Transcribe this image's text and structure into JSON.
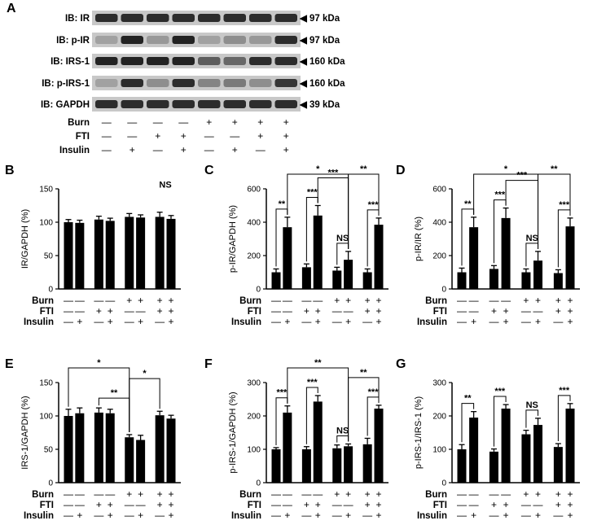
{
  "blot": {
    "panel": "A",
    "rows": [
      {
        "label": "IB: IR",
        "kda": "◀ 97 kDa",
        "intensity": [
          0.85,
          0.85,
          0.85,
          0.85,
          0.85,
          0.85,
          0.85,
          0.85
        ]
      },
      {
        "label": "IB: p-IR",
        "kda": "◀ 97 kDa",
        "intensity": [
          0.25,
          0.9,
          0.3,
          0.9,
          0.25,
          0.35,
          0.3,
          0.85
        ]
      },
      {
        "label": "IB: IRS-1",
        "kda": "◀ 160 kDa",
        "intensity": [
          0.9,
          0.9,
          0.9,
          0.9,
          0.6,
          0.55,
          0.85,
          0.85
        ]
      },
      {
        "label": "IB: p-IRS-1",
        "kda": "◀ 160 kDa",
        "intensity": [
          0.25,
          0.85,
          0.35,
          0.85,
          0.4,
          0.45,
          0.35,
          0.8
        ]
      },
      {
        "label": "IB: GAPDH",
        "kda": "◀ 39 kDa",
        "intensity": [
          0.85,
          0.85,
          0.85,
          0.85,
          0.85,
          0.85,
          0.85,
          0.85
        ]
      }
    ],
    "conditions": [
      {
        "label": "Burn",
        "signs": [
          "—",
          "—",
          "—",
          "—",
          "+",
          "+",
          "+",
          "+"
        ]
      },
      {
        "label": "FTI",
        "signs": [
          "—",
          "—",
          "+",
          "+",
          "—",
          "—",
          "+",
          "+"
        ]
      },
      {
        "label": "Insulin",
        "signs": [
          "—",
          "+",
          "—",
          "+",
          "—",
          "+",
          "—",
          "+"
        ]
      }
    ]
  },
  "chart_data": [
    {
      "panel": "B",
      "type": "bar",
      "ylabel": "IR/GAPDH (%)",
      "ylim": [
        0,
        150
      ],
      "yticks": [
        "0",
        "50",
        "100",
        "150"
      ],
      "values": [
        100,
        99,
        104,
        102,
        108,
        107,
        108,
        105
      ],
      "errors": [
        4,
        4,
        5,
        4,
        5,
        4,
        7,
        5
      ],
      "annotations": [
        {
          "text": "NS",
          "over": [
            6,
            7
          ]
        }
      ],
      "conditions": [
        {
          "label": "Burn",
          "signs": [
            "—",
            "—",
            "—",
            "—",
            "+",
            "+",
            "+",
            "+"
          ]
        },
        {
          "label": "FTI",
          "signs": [
            "—",
            "—",
            "+",
            "+",
            "—",
            "—",
            "+",
            "+"
          ]
        },
        {
          "label": "Insulin",
          "signs": [
            "—",
            "+",
            "—",
            "+",
            "—",
            "+",
            "—",
            "+"
          ]
        }
      ]
    },
    {
      "panel": "C",
      "type": "bar",
      "ylabel": "p-IR/GAPDH (%)",
      "ylim": [
        0,
        600
      ],
      "yticks": [
        "0",
        "200",
        "400",
        "600"
      ],
      "values": [
        100,
        370,
        130,
        440,
        110,
        175,
        100,
        385
      ],
      "errors": [
        20,
        60,
        20,
        60,
        20,
        50,
        20,
        40
      ],
      "annotations": [
        {
          "text": "**",
          "pair": [
            0,
            1
          ]
        },
        {
          "text": "***",
          "pair": [
            2,
            3
          ]
        },
        {
          "text": "NS",
          "pair": [
            4,
            5
          ]
        },
        {
          "text": "***",
          "pair": [
            6,
            7
          ]
        },
        {
          "text": "***",
          "pair": [
            3,
            5
          ]
        },
        {
          "text": "*",
          "pair": [
            1,
            5
          ]
        },
        {
          "text": "**",
          "pair": [
            5,
            7
          ]
        }
      ],
      "conditions": [
        {
          "label": "Burn",
          "signs": [
            "—",
            "—",
            "—",
            "—",
            "+",
            "+",
            "+",
            "+"
          ]
        },
        {
          "label": "FTI",
          "signs": [
            "—",
            "—",
            "+",
            "+",
            "—",
            "—",
            "+",
            "+"
          ]
        },
        {
          "label": "Insulin",
          "signs": [
            "—",
            "+",
            "—",
            "+",
            "—",
            "+",
            "—",
            "+"
          ]
        }
      ]
    },
    {
      "panel": "D",
      "type": "bar",
      "ylabel": "p-IR/IR (%)",
      "ylim": [
        0,
        600
      ],
      "yticks": [
        "0",
        "200",
        "400",
        "600"
      ],
      "values": [
        100,
        370,
        120,
        425,
        100,
        170,
        95,
        375
      ],
      "errors": [
        25,
        60,
        20,
        60,
        20,
        55,
        20,
        50
      ],
      "annotations": [
        {
          "text": "**",
          "pair": [
            0,
            1
          ]
        },
        {
          "text": "***",
          "pair": [
            2,
            3
          ]
        },
        {
          "text": "NS",
          "pair": [
            4,
            5
          ]
        },
        {
          "text": "***",
          "pair": [
            6,
            7
          ]
        },
        {
          "text": "***",
          "pair": [
            3,
            5
          ]
        },
        {
          "text": "*",
          "pair": [
            1,
            5
          ]
        },
        {
          "text": "**",
          "pair": [
            5,
            7
          ]
        }
      ],
      "conditions": [
        {
          "label": "Burn",
          "signs": [
            "—",
            "—",
            "—",
            "—",
            "+",
            "+",
            "+",
            "+"
          ]
        },
        {
          "label": "FTI",
          "signs": [
            "—",
            "—",
            "+",
            "+",
            "—",
            "—",
            "+",
            "+"
          ]
        },
        {
          "label": "Insulin",
          "signs": [
            "—",
            "+",
            "—",
            "+",
            "—",
            "+",
            "—",
            "+"
          ]
        }
      ]
    },
    {
      "panel": "E",
      "type": "bar",
      "ylabel": "IRS-1/GAPDH (%)",
      "ylim": [
        0,
        150
      ],
      "yticks": [
        "0",
        "50",
        "100",
        "150"
      ],
      "values": [
        100,
        104,
        105,
        104,
        68,
        64,
        101,
        96
      ],
      "errors": [
        10,
        8,
        7,
        6,
        4,
        7,
        6,
        5
      ],
      "annotations": [
        {
          "text": "**",
          "pair": [
            2,
            4
          ]
        },
        {
          "text": "*",
          "pair": [
            0,
            4
          ]
        },
        {
          "text": "*",
          "pair": [
            4,
            6
          ]
        }
      ],
      "conditions": [
        {
          "label": "Burn",
          "signs": [
            "—",
            "—",
            "—",
            "—",
            "+",
            "+",
            "+",
            "+"
          ]
        },
        {
          "label": "FTI",
          "signs": [
            "—",
            "—",
            "+",
            "+",
            "—",
            "—",
            "+",
            "+"
          ]
        },
        {
          "label": "Insulin",
          "signs": [
            "—",
            "+",
            "—",
            "+",
            "—",
            "+",
            "—",
            "+"
          ]
        }
      ]
    },
    {
      "panel": "F",
      "type": "bar",
      "ylabel": "p-IRS-1/GAPDH (%)",
      "ylim": [
        0,
        300
      ],
      "yticks": [
        "0",
        "100",
        "200",
        "300"
      ],
      "values": [
        100,
        210,
        100,
        243,
        103,
        109,
        115,
        222
      ],
      "errors": [
        5,
        20,
        8,
        18,
        10,
        7,
        18,
        10
      ],
      "annotations": [
        {
          "text": "***",
          "pair": [
            0,
            1
          ]
        },
        {
          "text": "***",
          "pair": [
            2,
            3
          ]
        },
        {
          "text": "NS",
          "pair": [
            4,
            5
          ]
        },
        {
          "text": "***",
          "pair": [
            6,
            7
          ]
        },
        {
          "text": "**",
          "pair": [
            1,
            5
          ]
        },
        {
          "text": "**",
          "pair": [
            5,
            7
          ]
        }
      ],
      "conditions": [
        {
          "label": "Burn",
          "signs": [
            "—",
            "—",
            "—",
            "—",
            "+",
            "+",
            "+",
            "+"
          ]
        },
        {
          "label": "FTI",
          "signs": [
            "—",
            "—",
            "+",
            "+",
            "—",
            "—",
            "+",
            "+"
          ]
        },
        {
          "label": "Insulin",
          "signs": [
            "—",
            "+",
            "—",
            "+",
            "—",
            "+",
            "—",
            "+"
          ]
        }
      ]
    },
    {
      "panel": "G",
      "type": "bar",
      "ylabel": "p-IRS-1/IRS-1 (%)",
      "ylim": [
        0,
        300
      ],
      "yticks": [
        "0",
        "100",
        "200",
        "300"
      ],
      "values": [
        100,
        195,
        93,
        222,
        145,
        173,
        107,
        222
      ],
      "errors": [
        14,
        18,
        8,
        12,
        12,
        20,
        10,
        15
      ],
      "annotations": [
        {
          "text": "**",
          "pair": [
            0,
            1
          ]
        },
        {
          "text": "***",
          "pair": [
            2,
            3
          ]
        },
        {
          "text": "NS",
          "pair": [
            4,
            5
          ]
        },
        {
          "text": "***",
          "pair": [
            6,
            7
          ]
        }
      ],
      "conditions": [
        {
          "label": "Burn",
          "signs": [
            "—",
            "—",
            "—",
            "—",
            "+",
            "+",
            "+",
            "+"
          ]
        },
        {
          "label": "FTI",
          "signs": [
            "—",
            "—",
            "+",
            "+",
            "—",
            "—",
            "+",
            "+"
          ]
        },
        {
          "label": "Insulin",
          "signs": [
            "—",
            "+",
            "—",
            "+",
            "—",
            "+",
            "—",
            "+"
          ]
        }
      ]
    }
  ]
}
